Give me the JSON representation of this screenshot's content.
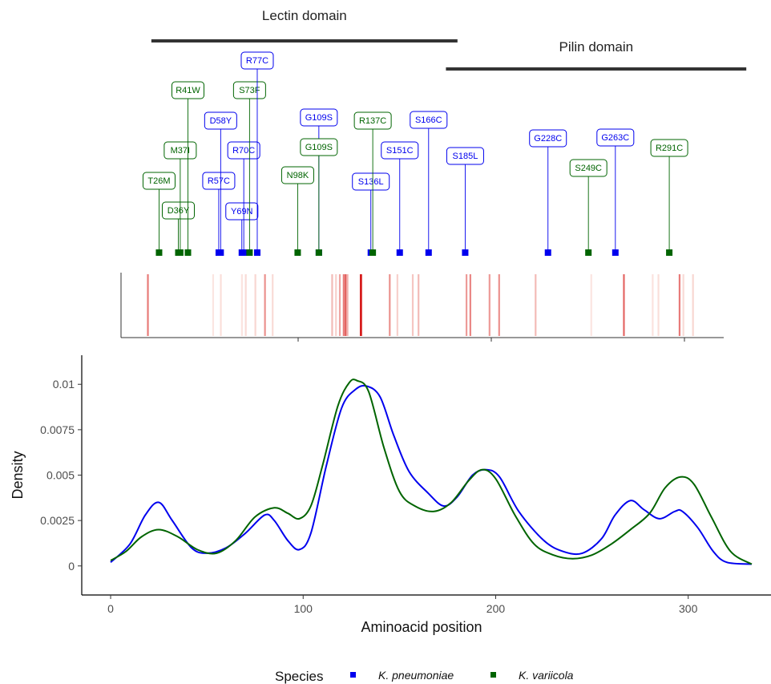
{
  "chart_data": [
    {
      "type": "annotation",
      "domains": [
        {
          "label": "Lectin domain",
          "start": 22,
          "end": 181
        },
        {
          "label": "Pilin domain",
          "start": 175,
          "end": 331
        }
      ],
      "mutations": [
        {
          "label": "T26M",
          "pos": 26,
          "species": "K. variicola"
        },
        {
          "label": "D36Y",
          "pos": 36,
          "species": "K. variicola"
        },
        {
          "label": "M37I",
          "pos": 37,
          "species": "K. variicola"
        },
        {
          "label": "R41W",
          "pos": 41,
          "species": "K. variicola"
        },
        {
          "label": "R57C",
          "pos": 57,
          "species": "K. pneumoniae"
        },
        {
          "label": "D58Y",
          "pos": 58,
          "species": "K. pneumoniae"
        },
        {
          "label": "Y69N",
          "pos": 69,
          "species": "K. pneumoniae"
        },
        {
          "label": "R70C",
          "pos": 70,
          "species": "K. pneumoniae"
        },
        {
          "label": "S73F",
          "pos": 73,
          "species": "K. variicola"
        },
        {
          "label": "R77C",
          "pos": 77,
          "species": "K. pneumoniae"
        },
        {
          "label": "N98K",
          "pos": 98,
          "species": "K. variicola"
        },
        {
          "label": "G109S",
          "pos": 109,
          "species": "K. pneumoniae"
        },
        {
          "label": "G109S",
          "pos": 109,
          "species": "K. variicola"
        },
        {
          "label": "S136L",
          "pos": 136,
          "species": "K. pneumoniae"
        },
        {
          "label": "R137C",
          "pos": 137,
          "species": "K. variicola"
        },
        {
          "label": "S151C",
          "pos": 151,
          "species": "K. pneumoniae"
        },
        {
          "label": "S166C",
          "pos": 166,
          "species": "K. pneumoniae"
        },
        {
          "label": "S185L",
          "pos": 185,
          "species": "K. pneumoniae"
        },
        {
          "label": "G228C",
          "pos": 228,
          "species": "K. pneumoniae"
        },
        {
          "label": "S249C",
          "pos": 249,
          "species": "K. variicola"
        },
        {
          "label": "G263C",
          "pos": 263,
          "species": "K. pneumoniae"
        },
        {
          "label": "R291C",
          "pos": 291,
          "species": "K. variicola"
        }
      ],
      "colors": {
        "K. pneumoniae": "#0000ee",
        "K. variicola": "#006400"
      }
    },
    {
      "type": "heatmap",
      "xlim": [
        0,
        314
      ],
      "bands": [
        {
          "pos": 14,
          "intensity": 0.55
        },
        {
          "pos": 48,
          "intensity": 0.05
        },
        {
          "pos": 52,
          "intensity": 0.08
        },
        {
          "pos": 63,
          "intensity": 0.06
        },
        {
          "pos": 65,
          "intensity": 0.1
        },
        {
          "pos": 70,
          "intensity": 0.12
        },
        {
          "pos": 75,
          "intensity": 0.45
        },
        {
          "pos": 79,
          "intensity": 0.1
        },
        {
          "pos": 110,
          "intensity": 0.25
        },
        {
          "pos": 112,
          "intensity": 0.15
        },
        {
          "pos": 114,
          "intensity": 0.35
        },
        {
          "pos": 116,
          "intensity": 0.55
        },
        {
          "pos": 117,
          "intensity": 0.7
        },
        {
          "pos": 118,
          "intensity": 0.3
        },
        {
          "pos": 125,
          "intensity": 1.0
        },
        {
          "pos": 140,
          "intensity": 0.45
        },
        {
          "pos": 144,
          "intensity": 0.15
        },
        {
          "pos": 152,
          "intensity": 0.2
        },
        {
          "pos": 155,
          "intensity": 0.25
        },
        {
          "pos": 180,
          "intensity": 0.4
        },
        {
          "pos": 182,
          "intensity": 0.5
        },
        {
          "pos": 192,
          "intensity": 0.4
        },
        {
          "pos": 197,
          "intensity": 0.45
        },
        {
          "pos": 216,
          "intensity": 0.25
        },
        {
          "pos": 245,
          "intensity": 0.05
        },
        {
          "pos": 262,
          "intensity": 0.65
        },
        {
          "pos": 277,
          "intensity": 0.06
        },
        {
          "pos": 280,
          "intensity": 0.08
        },
        {
          "pos": 291,
          "intensity": 0.55
        },
        {
          "pos": 293,
          "intensity": 0.1
        },
        {
          "pos": 298,
          "intensity": 0.12
        }
      ]
    },
    {
      "type": "line",
      "title": "",
      "xlabel": "Aminoacid position",
      "ylabel": "Density",
      "xlim": [
        -15,
        343
      ],
      "ylim": [
        -0.0016,
        0.0116
      ],
      "xticks": [
        0,
        100,
        200,
        300
      ],
      "xtick_labels": [
        "0",
        "100",
        "200",
        "300"
      ],
      "yticks": [
        0,
        0.0025,
        0.005,
        0.0075,
        0.01
      ],
      "ytick_labels": [
        "0",
        "0.0025",
        "0.005",
        "0.0075",
        "0.01"
      ],
      "grid": false,
      "legend": {
        "title": "Species",
        "placement": "bottom"
      },
      "series": [
        {
          "name": "K. pneumoniae",
          "color": "#0000ee",
          "points": [
            [
              0,
              0.0002
            ],
            [
              10,
              0.0012
            ],
            [
              18,
              0.0028
            ],
            [
              25,
              0.0035
            ],
            [
              32,
              0.0025
            ],
            [
              42,
              0.001
            ],
            [
              50,
              0.0007
            ],
            [
              60,
              0.001
            ],
            [
              70,
              0.0018
            ],
            [
              80,
              0.0028
            ],
            [
              85,
              0.0025
            ],
            [
              92,
              0.0014
            ],
            [
              98,
              0.0009
            ],
            [
              104,
              0.0018
            ],
            [
              112,
              0.0055
            ],
            [
              120,
              0.0087
            ],
            [
              127,
              0.0097
            ],
            [
              133,
              0.0099
            ],
            [
              140,
              0.0093
            ],
            [
              147,
              0.0072
            ],
            [
              155,
              0.0052
            ],
            [
              165,
              0.004
            ],
            [
              173,
              0.0033
            ],
            [
              180,
              0.0038
            ],
            [
              188,
              0.005
            ],
            [
              195,
              0.0053
            ],
            [
              202,
              0.0049
            ],
            [
              212,
              0.003
            ],
            [
              225,
              0.0014
            ],
            [
              235,
              0.0008
            ],
            [
              245,
              0.0007
            ],
            [
              255,
              0.0015
            ],
            [
              262,
              0.0028
            ],
            [
              270,
              0.0036
            ],
            [
              277,
              0.0031
            ],
            [
              285,
              0.0026
            ],
            [
              293,
              0.003
            ],
            [
              297,
              0.003
            ],
            [
              305,
              0.0021
            ],
            [
              313,
              0.0008
            ],
            [
              320,
              0.0002
            ],
            [
              333,
              0.0001
            ]
          ]
        },
        {
          "name": "K. variicola",
          "color": "#006400",
          "points": [
            [
              0,
              0.0003
            ],
            [
              8,
              0.0008
            ],
            [
              16,
              0.0016
            ],
            [
              25,
              0.002
            ],
            [
              35,
              0.0016
            ],
            [
              45,
              0.0009
            ],
            [
              55,
              0.0007
            ],
            [
              65,
              0.0014
            ],
            [
              75,
              0.0027
            ],
            [
              85,
              0.0032
            ],
            [
              92,
              0.0029
            ],
            [
              98,
              0.0026
            ],
            [
              104,
              0.0033
            ],
            [
              110,
              0.0055
            ],
            [
              118,
              0.0088
            ],
            [
              124,
              0.0101
            ],
            [
              128,
              0.0102
            ],
            [
              134,
              0.0096
            ],
            [
              142,
              0.0065
            ],
            [
              150,
              0.0041
            ],
            [
              158,
              0.0033
            ],
            [
              168,
              0.003
            ],
            [
              177,
              0.0035
            ],
            [
              186,
              0.0047
            ],
            [
              193,
              0.0053
            ],
            [
              200,
              0.0048
            ],
            [
              210,
              0.0028
            ],
            [
              220,
              0.0012
            ],
            [
              230,
              0.0006
            ],
            [
              240,
              0.0004
            ],
            [
              250,
              0.0006
            ],
            [
              260,
              0.0012
            ],
            [
              270,
              0.002
            ],
            [
              280,
              0.0029
            ],
            [
              288,
              0.0043
            ],
            [
              296,
              0.0049
            ],
            [
              303,
              0.0045
            ],
            [
              312,
              0.0027
            ],
            [
              322,
              0.0008
            ],
            [
              333,
              0.0001
            ]
          ]
        }
      ]
    }
  ]
}
